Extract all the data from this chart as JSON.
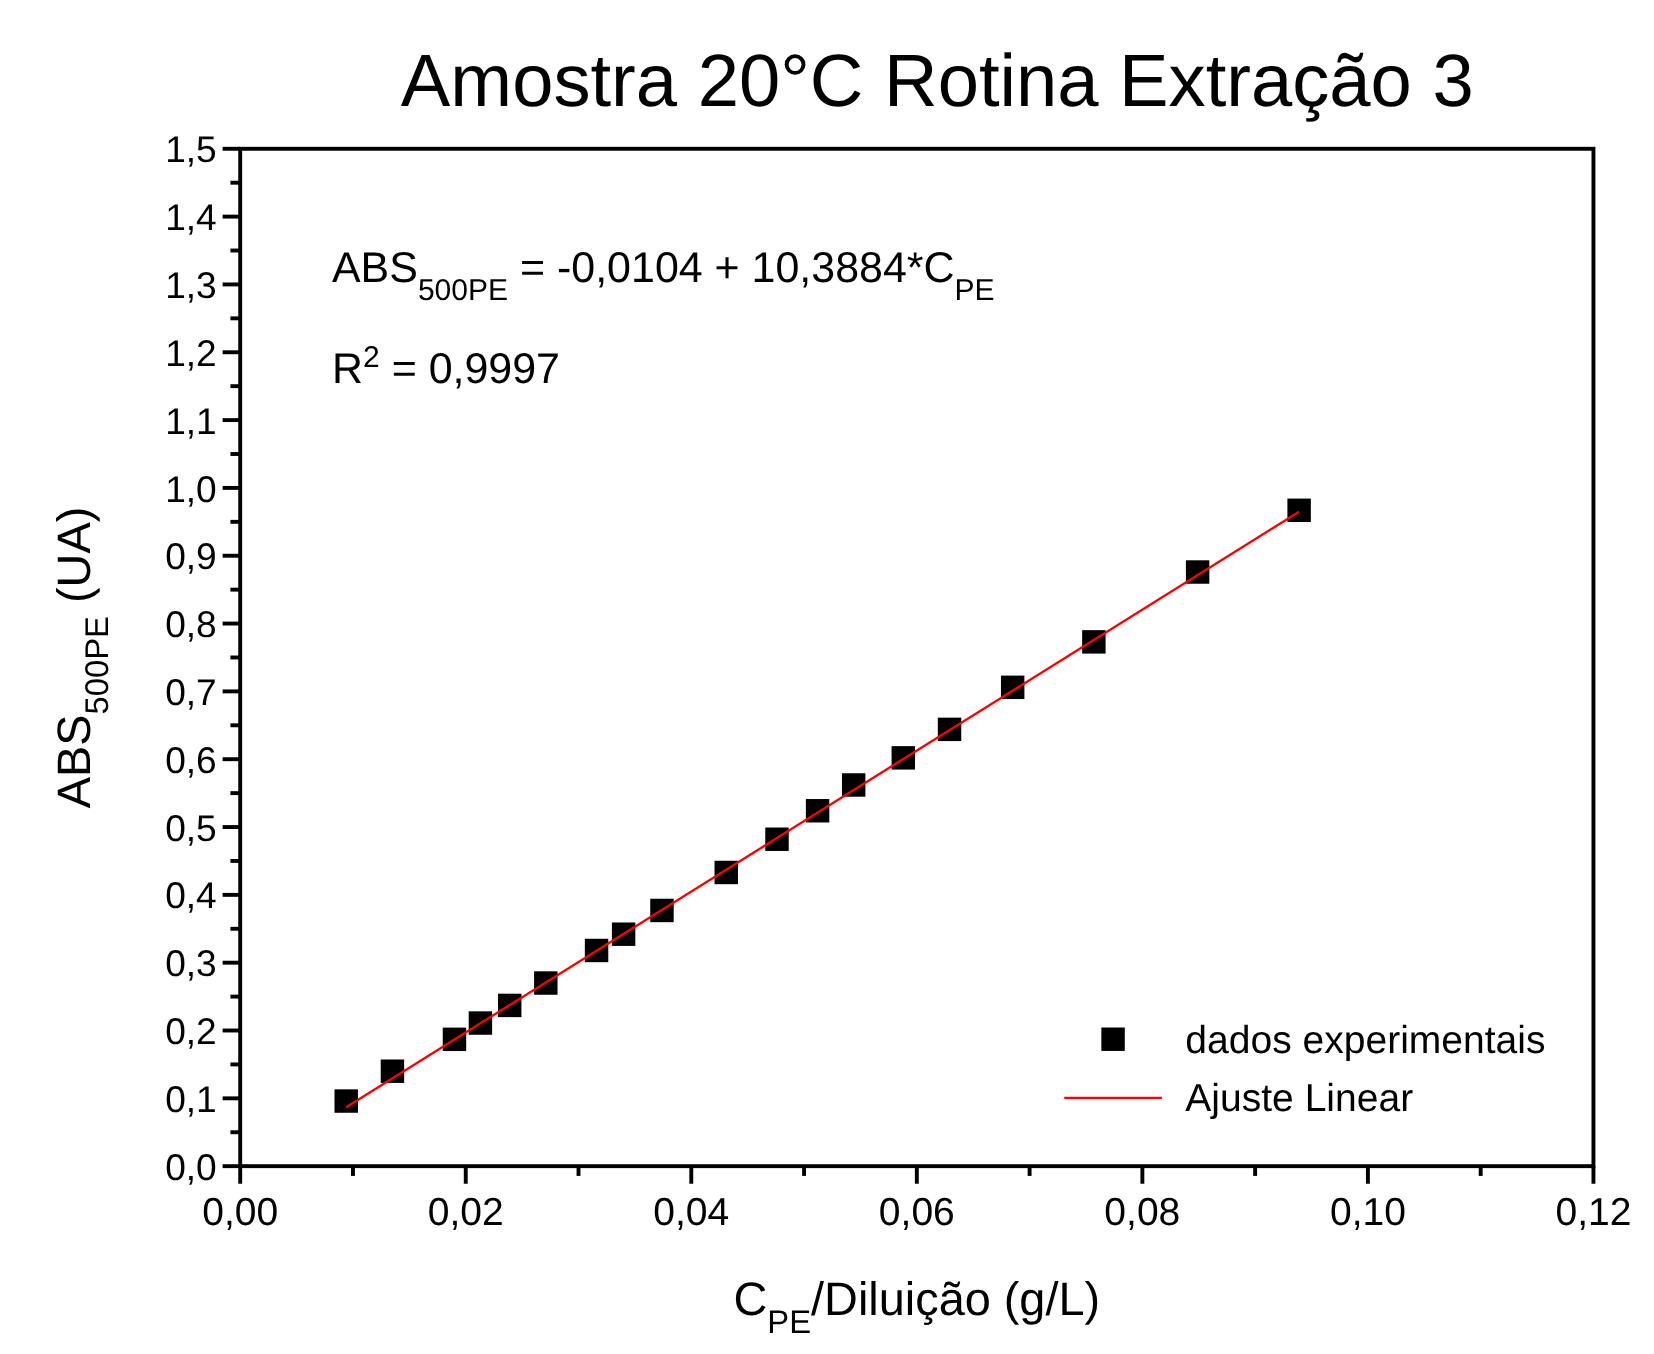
{
  "chart_data": {
    "type": "scatter",
    "title": "Amostra 20°C Rotina Extração 3",
    "xlabel": "C$_{PE}$/Diluição (g/L)",
    "ylabel": "ABS$_{500PE}$ (UA)",
    "annotations": [
      "ABS$_{500PE}$ = -0,0104 + 10,3884*C$_{PE}$",
      "R$^{2}$ = 0,9997"
    ],
    "xlim": [
      0,
      0.12
    ],
    "ylim": [
      0,
      1.5
    ],
    "xticks": [
      {
        "value": 0,
        "label": "0,00"
      },
      {
        "value": 0.01,
        "label": null
      },
      {
        "value": 0.02,
        "label": "0,02"
      },
      {
        "value": 0.03,
        "label": null
      },
      {
        "value": 0.04,
        "label": "0,04"
      },
      {
        "value": 0.05,
        "label": null
      },
      {
        "value": 0.06,
        "label": "0,06"
      },
      {
        "value": 0.07,
        "label": null
      },
      {
        "value": 0.08,
        "label": "0,08"
      },
      {
        "value": 0.09,
        "label": null
      },
      {
        "value": 0.1,
        "label": "0,10"
      },
      {
        "value": 0.11,
        "label": null
      },
      {
        "value": 0.12,
        "label": "0,12"
      }
    ],
    "yticks": [
      {
        "value": 0,
        "label": "0,0"
      },
      {
        "value": 0.05,
        "label": null
      },
      {
        "value": 0.1,
        "label": "0,1"
      },
      {
        "value": 0.15,
        "label": null
      },
      {
        "value": 0.2,
        "label": "0,2"
      },
      {
        "value": 0.25,
        "label": null
      },
      {
        "value": 0.3,
        "label": "0,3"
      },
      {
        "value": 0.35,
        "label": null
      },
      {
        "value": 0.4,
        "label": "0,4"
      },
      {
        "value": 0.45,
        "label": null
      },
      {
        "value": 0.5,
        "label": "0,5"
      },
      {
        "value": 0.55,
        "label": null
      },
      {
        "value": 0.6,
        "label": "0,6"
      },
      {
        "value": 0.65,
        "label": null
      },
      {
        "value": 0.7,
        "label": "0,7"
      },
      {
        "value": 0.75,
        "label": null
      },
      {
        "value": 0.8,
        "label": "0,8"
      },
      {
        "value": 0.85,
        "label": null
      },
      {
        "value": 0.9,
        "label": "0,9"
      },
      {
        "value": 0.95,
        "label": null
      },
      {
        "value": 1.0,
        "label": "1,0"
      },
      {
        "value": 1.05,
        "label": null
      },
      {
        "value": 1.1,
        "label": "1,1"
      },
      {
        "value": 1.15,
        "label": null
      },
      {
        "value": 1.2,
        "label": "1,2"
      },
      {
        "value": 1.25,
        "label": null
      },
      {
        "value": 1.3,
        "label": "1,3"
      },
      {
        "value": 1.35,
        "label": null
      },
      {
        "value": 1.4,
        "label": "1,4"
      },
      {
        "value": 1.45,
        "label": null
      },
      {
        "value": 1.5,
        "label": "1,5"
      }
    ],
    "grid": false,
    "legend": "bottom right",
    "series": [
      {
        "name": "dados experimentais",
        "marker": "square",
        "color": "#000000",
        "x": [
          0.0094,
          0.0135,
          0.019,
          0.0213,
          0.0239,
          0.0271,
          0.0316,
          0.034,
          0.0374,
          0.0431,
          0.0476,
          0.0512,
          0.0544,
          0.0588,
          0.0629,
          0.0685,
          0.0757,
          0.0849,
          0.0939
        ],
        "values": [
          0.096,
          0.14,
          0.187,
          0.211,
          0.237,
          0.27,
          0.318,
          0.342,
          0.377,
          0.433,
          0.482,
          0.524,
          0.562,
          0.602,
          0.644,
          0.706,
          0.773,
          0.876,
          0.967
        ]
      },
      {
        "name": "Ajuste Linear",
        "type": "line",
        "marker": "none",
        "line_style": "solid",
        "color": "#ff0000",
        "x": [
          0.0094,
          0.0939
        ],
        "values": [
          0.087,
          0.965
        ]
      }
    ]
  }
}
